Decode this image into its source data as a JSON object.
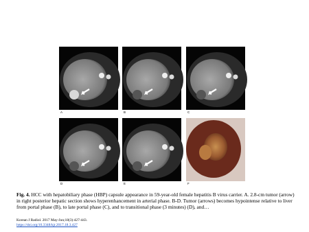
{
  "figure": {
    "panels": [
      "A",
      "B",
      "C",
      "D",
      "E",
      "F"
    ]
  },
  "caption": {
    "label": "Fig. 4.",
    "text": "HCC with hepatobiliary phase (HBP) capsule appearance in 59-year-old female hepatitis B virus carrier. A. 2.8-cm tumor (arrow) in right posterior hepatic section shows hyperenhancement in arterial phase. B-D. Tumor (arrows) becomes hypointense relative to liver from portal phase (B), to late portal phase (C), and to transitional phase (3 minutes) (D), and…"
  },
  "citation": {
    "journal": "Korean J Radiol. 2017 May-Jun;18(3):427-443.",
    "doi": "https://doi.org/10.3348/kjr.2017.18.3.427"
  }
}
